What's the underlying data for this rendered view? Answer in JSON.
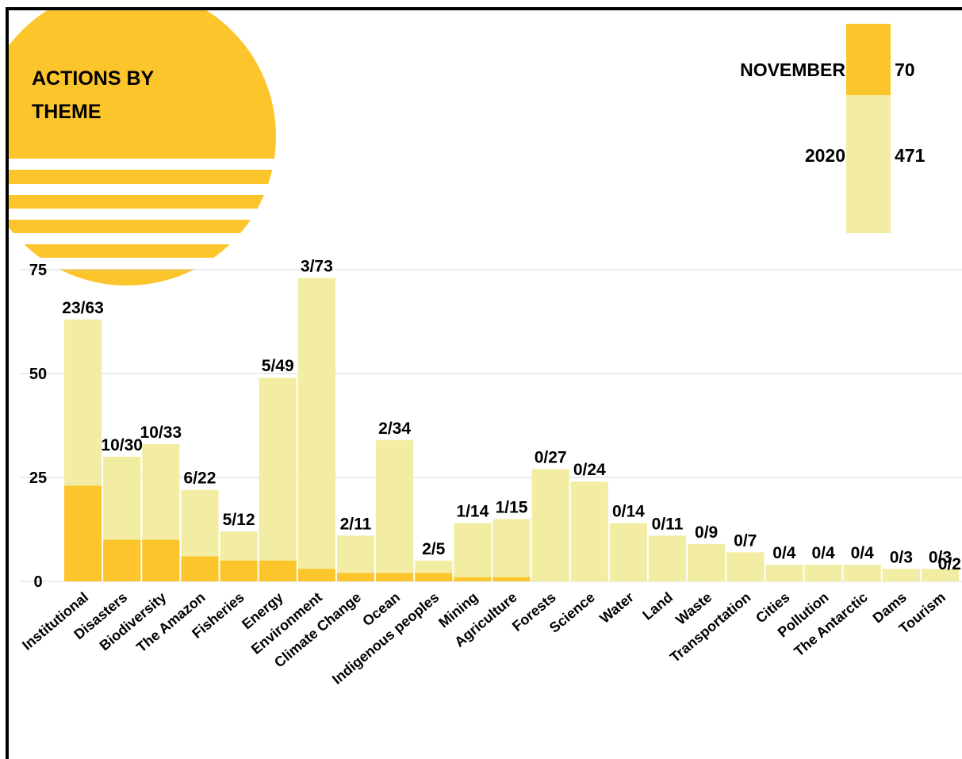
{
  "chart_data": {
    "type": "bar",
    "title": "ACTIONS BY THEME",
    "categories": [
      "Institutional",
      "Disasters",
      "Biodiversity",
      "The Amazon",
      "Fisheries",
      "Energy",
      "Environment",
      "Climate Change",
      "Ocean",
      "Indigenous peoples",
      "Mining",
      "Agriculture",
      "Forests",
      "Science",
      "Water",
      "Land",
      "Waste",
      "Transportation",
      "Cities",
      "Pollution",
      "The Antarctic",
      "Dams",
      "Tourism"
    ],
    "series": [
      {
        "name": "2020",
        "total": 471,
        "color": "#f2eda3",
        "values": [
          63,
          30,
          33,
          22,
          12,
          49,
          73,
          11,
          34,
          5,
          14,
          15,
          27,
          24,
          14,
          11,
          9,
          7,
          4,
          4,
          4,
          3,
          3
        ]
      },
      {
        "name": "NOVEMBER",
        "total": 70,
        "color": "#fdc52c",
        "values": [
          23,
          10,
          10,
          6,
          5,
          5,
          3,
          2,
          2,
          2,
          1,
          1,
          0,
          0,
          0,
          0,
          0,
          0,
          0,
          0,
          0,
          0,
          0
        ]
      }
    ],
    "value_labels": [
      "23/63",
      "10/30",
      "10/33",
      "6/22",
      "5/12",
      "5/49",
      "3/73",
      "2/11",
      "2/34",
      "2/5",
      "1/14",
      "1/15",
      "0/27",
      "0/24",
      "0/14",
      "0/11",
      "0/9",
      "0/7",
      "0/4",
      "0/4",
      "0/4",
      "0/3",
      "0/3"
    ],
    "annotations": [
      "0/2"
    ],
    "ylim": [
      0,
      75
    ],
    "yticks": [
      0,
      25,
      50,
      75
    ],
    "grid": true
  }
}
